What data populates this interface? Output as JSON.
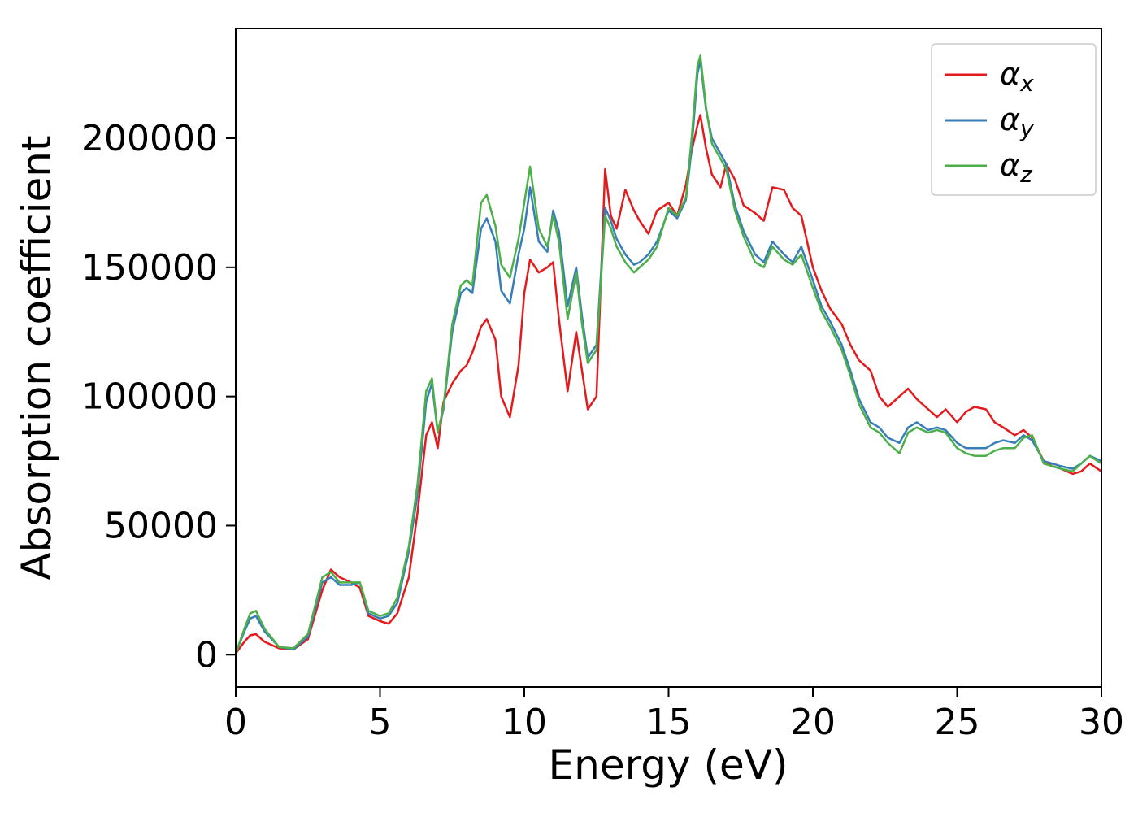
{
  "chart_data": {
    "type": "line",
    "title": "",
    "xlabel": "Energy (eV)",
    "ylabel": "Absorption coefficient",
    "xlim": [
      0,
      30
    ],
    "ylim": [
      -12500,
      242500
    ],
    "xticks": [
      0,
      5,
      10,
      15,
      20,
      25,
      30
    ],
    "yticks": [
      0,
      50000,
      100000,
      150000,
      200000
    ],
    "grid": false,
    "legend_position": "upper right",
    "x": [
      0,
      0.3,
      0.5,
      0.7,
      1,
      1.5,
      2,
      2.5,
      3,
      3.3,
      3.6,
      4,
      4.3,
      4.6,
      5,
      5.3,
      5.6,
      6,
      6.3,
      6.6,
      6.8,
      7,
      7.2,
      7.5,
      7.8,
      8,
      8.2,
      8.5,
      8.7,
      9,
      9.2,
      9.5,
      9.8,
      10,
      10.2,
      10.5,
      10.8,
      11,
      11.2,
      11.5,
      11.8,
      12,
      12.2,
      12.5,
      12.8,
      13,
      13.2,
      13.5,
      13.8,
      14,
      14.3,
      14.6,
      15,
      15.3,
      15.6,
      15.8,
      16,
      16.1,
      16.3,
      16.5,
      16.8,
      17,
      17.3,
      17.6,
      18,
      18.3,
      18.6,
      19,
      19.3,
      19.6,
      20,
      20.3,
      20.6,
      21,
      21.3,
      21.6,
      22,
      22.3,
      22.6,
      23,
      23.3,
      23.6,
      24,
      24.3,
      24.6,
      25,
      25.3,
      25.6,
      26,
      26.3,
      26.6,
      27,
      27.3,
      27.6,
      28,
      28.3,
      28.6,
      29,
      29.3,
      29.6,
      30
    ],
    "series": [
      {
        "name": "alpha_x",
        "label_symbol": "α",
        "label_subscript": "x",
        "color": "#e41a1c",
        "values": [
          500,
          5000,
          7500,
          8000,
          5000,
          2500,
          2000,
          6000,
          25000,
          33000,
          30000,
          28000,
          26000,
          15000,
          13000,
          12000,
          16000,
          30000,
          55000,
          85000,
          90000,
          80000,
          98000,
          105000,
          110000,
          112000,
          117000,
          127000,
          130000,
          122000,
          100000,
          92000,
          112000,
          140000,
          153000,
          148000,
          150000,
          152000,
          130000,
          102000,
          125000,
          110000,
          95000,
          100000,
          188000,
          170000,
          165000,
          180000,
          172000,
          168000,
          163000,
          172000,
          175000,
          170000,
          182000,
          195000,
          205000,
          209000,
          196000,
          186000,
          181000,
          190000,
          184000,
          174000,
          171000,
          168000,
          181000,
          180000,
          173000,
          170000,
          150000,
          141000,
          134000,
          128000,
          120000,
          114000,
          110000,
          100000,
          96000,
          100000,
          103000,
          99000,
          95000,
          92000,
          95000,
          90000,
          94000,
          96000,
          95000,
          90000,
          88000,
          85000,
          87000,
          84000,
          75000,
          73000,
          72000,
          70000,
          71000,
          74000,
          71000
        ]
      },
      {
        "name": "alpha_y",
        "label_symbol": "α",
        "label_subscript": "y",
        "color": "#377eb8",
        "values": [
          500,
          9000,
          14000,
          15000,
          9000,
          3000,
          2000,
          7000,
          28000,
          30000,
          27000,
          27000,
          28000,
          16000,
          14000,
          15000,
          20000,
          40000,
          62000,
          98000,
          105000,
          86000,
          95000,
          125000,
          140000,
          142000,
          140000,
          165000,
          169000,
          160000,
          141000,
          136000,
          155000,
          165000,
          181000,
          160000,
          156000,
          172000,
          164000,
          135000,
          150000,
          131000,
          115000,
          120000,
          173000,
          168000,
          161000,
          155000,
          151000,
          152000,
          155000,
          160000,
          172000,
          169000,
          176000,
          196000,
          225000,
          230000,
          211000,
          200000,
          194000,
          190000,
          174000,
          164000,
          155000,
          152000,
          160000,
          155000,
          152000,
          158000,
          145000,
          135000,
          129000,
          120000,
          110000,
          99000,
          90000,
          88000,
          84000,
          82000,
          88000,
          90000,
          87000,
          88000,
          87000,
          82000,
          80000,
          80000,
          80000,
          82000,
          83000,
          82000,
          85000,
          83000,
          75000,
          74000,
          73000,
          72000,
          74000,
          77000,
          75000
        ]
      },
      {
        "name": "alpha_z",
        "label_symbol": "α",
        "label_subscript": "z",
        "color": "#4daf4a",
        "values": [
          500,
          10000,
          16000,
          17000,
          10000,
          3000,
          2500,
          8000,
          30000,
          32000,
          28000,
          28000,
          28000,
          17000,
          15000,
          16000,
          22000,
          42000,
          66000,
          102000,
          107000,
          86000,
          96000,
          128000,
          143000,
          145000,
          143000,
          175000,
          178000,
          166000,
          151000,
          146000,
          161000,
          175000,
          189000,
          165000,
          158000,
          170000,
          160000,
          130000,
          148000,
          128000,
          113000,
          118000,
          170000,
          165000,
          158000,
          152000,
          148000,
          150000,
          153000,
          158000,
          173000,
          170000,
          177000,
          200000,
          228000,
          232000,
          212000,
          198000,
          192000,
          188000,
          172000,
          162000,
          152000,
          150000,
          158000,
          153000,
          151000,
          155000,
          142000,
          133000,
          127000,
          118000,
          108000,
          97000,
          88000,
          86000,
          82000,
          78000,
          86000,
          88000,
          86000,
          87000,
          86000,
          80000,
          78000,
          77000,
          77000,
          79000,
          80000,
          80000,
          84000,
          85000,
          74000,
          73000,
          72000,
          71000,
          74000,
          77000,
          74000
        ]
      }
    ]
  }
}
